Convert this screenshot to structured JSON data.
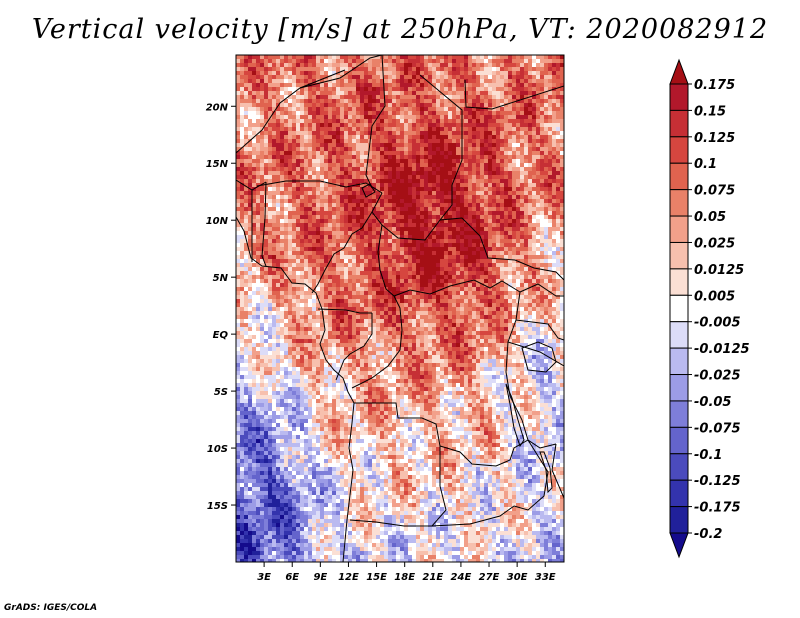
{
  "title": "Vertical velocity [m/s] at 250hPa, VT: 2020082912",
  "footer": "GrADS: IGES/COLA",
  "chart_data": {
    "type": "heatmap",
    "variable": "Vertical velocity",
    "units": "m/s",
    "level": "250hPa",
    "valid_time": "2020082912",
    "lon_range": [
      0,
      35
    ],
    "lat_range": [
      -20,
      24.5
    ],
    "lat_ticks": [
      {
        "value": 20,
        "label": "20N"
      },
      {
        "value": 15,
        "label": "15N"
      },
      {
        "value": 10,
        "label": "10N"
      },
      {
        "value": 5,
        "label": "5N"
      },
      {
        "value": 0,
        "label": "EQ"
      },
      {
        "value": -5,
        "label": "5S"
      },
      {
        "value": -10,
        "label": "10S"
      },
      {
        "value": -15,
        "label": "15S"
      }
    ],
    "lon_ticks": [
      {
        "value": 3,
        "label": "3E"
      },
      {
        "value": 6,
        "label": "6E"
      },
      {
        "value": 9,
        "label": "9E"
      },
      {
        "value": 12,
        "label": "12E"
      },
      {
        "value": 15,
        "label": "15E"
      },
      {
        "value": 18,
        "label": "18E"
      },
      {
        "value": 21,
        "label": "21E"
      },
      {
        "value": 24,
        "label": "24E"
      },
      {
        "value": 27,
        "label": "27E"
      },
      {
        "value": 30,
        "label": "30E"
      },
      {
        "value": 33,
        "label": "33E"
      }
    ],
    "colorbar": {
      "levels": [
        "0.175",
        "0.15",
        "0.125",
        "0.1",
        "0.075",
        "0.05",
        "0.025",
        "0.0125",
        "0.005",
        "-0.005",
        "-0.0125",
        "-0.025",
        "-0.05",
        "-0.075",
        "-0.1",
        "-0.125",
        "-0.175",
        "-0.2"
      ],
      "colors": [
        "#a50f15",
        "#b2182b",
        "#c62f35",
        "#d6463f",
        "#e0634f",
        "#e98168",
        "#f2a08a",
        "#f7c0ae",
        "#fbdfd4",
        "#ffffff",
        "#dcdcf8",
        "#babaf0",
        "#9c9ce6",
        "#7e7ed9",
        "#6464cc",
        "#4b4bbd",
        "#3333ad",
        "#20209a",
        "#140b8c"
      ]
    }
  }
}
